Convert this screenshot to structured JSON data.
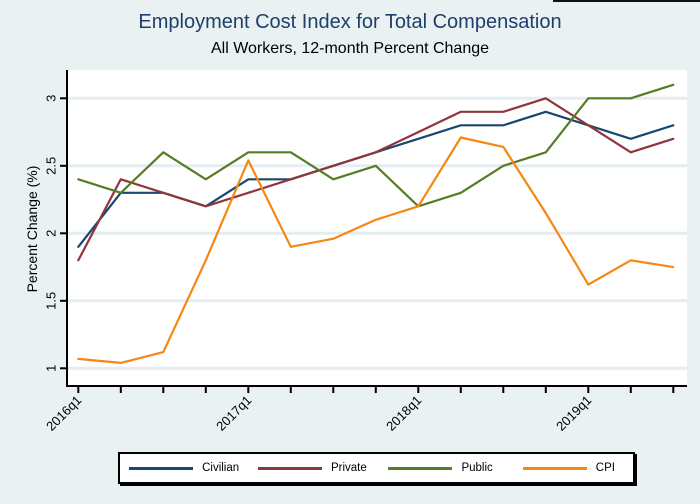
{
  "figure": {
    "background": "#e9f1f2",
    "plot_background": "#ffffff",
    "gridline_color": "#e4edf2",
    "axis_color": "#000000",
    "title_color": "#1e3f6b"
  },
  "chart_data": {
    "type": "line",
    "title": "Employment Cost Index for Total Compensation",
    "subtitle": "All Workers, 12-month Percent Change",
    "xlabel": "",
    "ylabel": "Percent Change (%)",
    "x": [
      "2016q1",
      "2016q2",
      "2016q3",
      "2016q4",
      "2017q1",
      "2017q2",
      "2017q3",
      "2017q4",
      "2018q1",
      "2018q2",
      "2018q3",
      "2018q4",
      "2019q1",
      "2019q2",
      "2019q3"
    ],
    "x_tick_indices": [
      0,
      4,
      8,
      12
    ],
    "x_tick_labels": [
      "2016q1",
      "2017q1",
      "2018q1",
      "2019q1"
    ],
    "x_tick_angle_deg": -45,
    "yticks": [
      1,
      1.5,
      2,
      2.5,
      3
    ],
    "ylim": [
      0.87,
      3.21
    ],
    "grid": true,
    "legend_position": "bottom",
    "series": [
      {
        "name": "Civilian",
        "color": "#1a476f",
        "values": [
          1.9,
          2.3,
          2.3,
          2.2,
          2.4,
          2.4,
          2.5,
          2.6,
          2.7,
          2.8,
          2.8,
          2.9,
          2.8,
          2.7,
          2.8
        ]
      },
      {
        "name": "Private",
        "color": "#90353b",
        "values": [
          1.8,
          2.4,
          2.3,
          2.2,
          2.3,
          2.4,
          2.5,
          2.6,
          2.75,
          2.9,
          2.9,
          3.0,
          2.8,
          2.6,
          2.7
        ]
      },
      {
        "name": "Public",
        "color": "#557d23",
        "values": [
          2.4,
          2.3,
          2.6,
          2.4,
          2.6,
          2.6,
          2.4,
          2.5,
          2.2,
          2.3,
          2.5,
          2.6,
          3.0,
          3.0,
          3.1
        ]
      },
      {
        "name": "CPI",
        "color": "#f68712",
        "values": [
          1.07,
          1.04,
          1.12,
          1.8,
          2.54,
          1.9,
          1.96,
          2.1,
          2.2,
          2.71,
          2.64,
          2.15,
          1.62,
          1.8,
          1.75
        ]
      }
    ]
  }
}
